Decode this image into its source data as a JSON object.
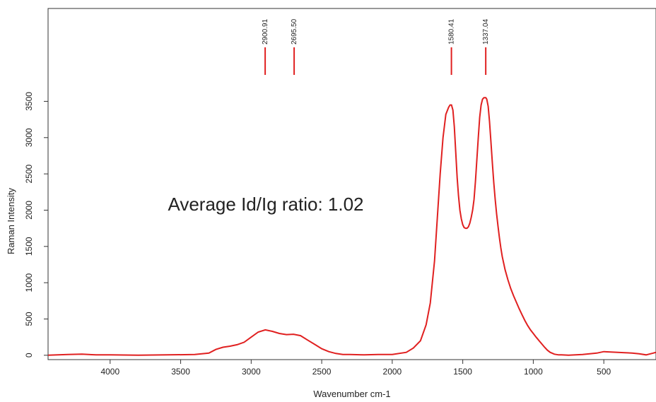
{
  "chart_data": {
    "type": "line",
    "title": "",
    "xlabel": "Wavenumber cm-1",
    "ylabel": "Raman Intensity",
    "xlim": [
      4440,
      130
    ],
    "ylim": [
      -60,
      4780
    ],
    "x_reversed": true,
    "x_ticks": [
      4000,
      3500,
      3000,
      2500,
      2000,
      1500,
      1000,
      500
    ],
    "y_ticks": [
      0,
      500,
      1000,
      1500,
      2000,
      2500,
      3000,
      3500
    ],
    "grid": false,
    "legend": "none",
    "annotation": "Average Id/Ig ratio: 1.02",
    "peak_markers": [
      {
        "x": 2900.91,
        "label": "2900.91"
      },
      {
        "x": 2695.5,
        "label": "2695.50"
      },
      {
        "x": 1580.41,
        "label": "1580.41"
      },
      {
        "x": 1337.04,
        "label": "1337.04"
      }
    ],
    "colors": {
      "line": "#e02020",
      "axis": "#333333"
    },
    "series": [
      {
        "x": [
          4440,
          4300,
          4200,
          4100,
          4000,
          3800,
          3600,
          3400,
          3300,
          3250,
          3200,
          3150,
          3100,
          3050,
          3000,
          2950,
          2900,
          2850,
          2800,
          2750,
          2700,
          2650,
          2600,
          2550,
          2500,
          2450,
          2400,
          2350,
          2300,
          2200,
          2100,
          2000,
          1900,
          1850,
          1800,
          1760,
          1730,
          1700,
          1680,
          1660,
          1640,
          1620,
          1600,
          1590,
          1580,
          1570,
          1560,
          1550,
          1540,
          1530,
          1520,
          1510,
          1500,
          1490,
          1480,
          1470,
          1460,
          1450,
          1440,
          1430,
          1420,
          1410,
          1400,
          1390,
          1380,
          1370,
          1360,
          1350,
          1337,
          1330,
          1320,
          1310,
          1300,
          1290,
          1280,
          1270,
          1260,
          1250,
          1240,
          1230,
          1220,
          1200,
          1180,
          1160,
          1140,
          1120,
          1100,
          1080,
          1060,
          1040,
          1020,
          1000,
          980,
          950,
          920,
          900,
          880,
          850,
          820,
          800,
          750,
          700,
          650,
          600,
          550,
          500,
          450,
          400,
          350,
          300,
          250,
          200,
          150,
          130
        ],
        "y": [
          0,
          10,
          15,
          5,
          5,
          0,
          5,
          10,
          30,
          80,
          110,
          125,
          145,
          180,
          250,
          320,
          350,
          330,
          300,
          285,
          290,
          270,
          210,
          150,
          90,
          50,
          25,
          10,
          10,
          5,
          10,
          10,
          40,
          100,
          200,
          420,
          720,
          1300,
          1900,
          2500,
          3000,
          3320,
          3420,
          3450,
          3450,
          3380,
          3150,
          2800,
          2450,
          2200,
          2000,
          1880,
          1800,
          1760,
          1750,
          1750,
          1770,
          1820,
          1900,
          2000,
          2150,
          2400,
          2700,
          3000,
          3280,
          3450,
          3530,
          3550,
          3550,
          3530,
          3430,
          3220,
          2940,
          2650,
          2380,
          2150,
          1950,
          1780,
          1620,
          1480,
          1360,
          1180,
          1040,
          920,
          820,
          730,
          640,
          560,
          480,
          410,
          350,
          300,
          250,
          180,
          110,
          70,
          40,
          15,
          5,
          5,
          0,
          5,
          10,
          20,
          30,
          50,
          45,
          40,
          35,
          30,
          20,
          5,
          30,
          40
        ]
      }
    ]
  }
}
